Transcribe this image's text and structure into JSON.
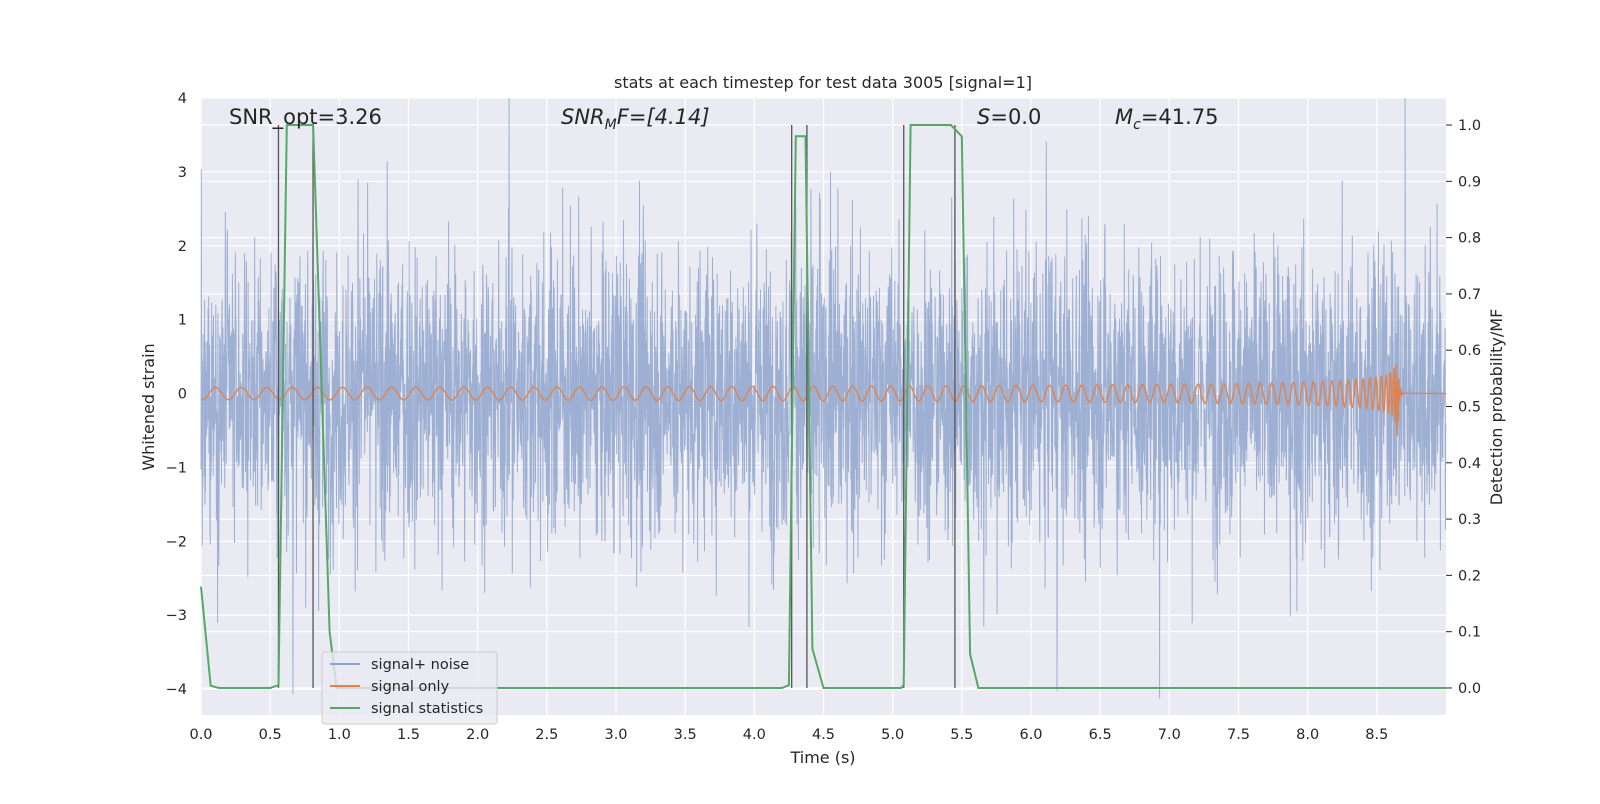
{
  "chart_data": {
    "type": "line",
    "title": "stats at each timestep for test data 3005 [signal=1]",
    "xlabel": "Time (s)",
    "ylabel": "Whitened strain",
    "ylabel_right": "Detection probability/MF",
    "xlim": [
      0,
      9.0
    ],
    "ylim": [
      -4.35,
      4.0
    ],
    "ylim_right": [
      -0.048,
      1.048
    ],
    "x_ticks": [
      "0.0",
      "0.5",
      "1.0",
      "1.5",
      "2.0",
      "2.5",
      "3.0",
      "3.5",
      "4.0",
      "4.5",
      "5.0",
      "5.5",
      "6.0",
      "6.5",
      "7.0",
      "7.5",
      "8.0",
      "8.5"
    ],
    "x_tick_values": [
      0,
      0.5,
      1.0,
      1.5,
      2.0,
      2.5,
      3.0,
      3.5,
      4.0,
      4.5,
      5.0,
      5.5,
      6.0,
      6.5,
      7.0,
      7.5,
      8.0,
      8.5
    ],
    "y_ticks": [
      "4",
      "3",
      "2",
      "1",
      "0",
      "−1",
      "−2",
      "−3",
      "−4"
    ],
    "y_tick_values": [
      4,
      3,
      2,
      1,
      0,
      -1,
      -2,
      -3,
      -4
    ],
    "y_ticks_right": [
      "1.0",
      "0.9",
      "0.8",
      "0.7",
      "0.6",
      "0.5",
      "0.4",
      "0.3",
      "0.2",
      "0.1",
      "0.0"
    ],
    "y_tick_values_right": [
      1.0,
      0.9,
      0.8,
      0.7,
      0.6,
      0.5,
      0.4,
      0.3,
      0.2,
      0.1,
      0.0
    ],
    "grid": true,
    "legend_position": "lower-left",
    "series": [
      {
        "name": "signal+ noise",
        "color": "#8fa4cc",
        "description_values": {
          "noise_sigma": 1.0,
          "x_start": 0.0,
          "x_end": 9.0
        }
      },
      {
        "name": "signal only",
        "color": "#dd8452",
        "chirp": {
          "t_merger": 8.65,
          "peak_amplitude": 0.72,
          "t_start_visible": 5.5
        }
      },
      {
        "name": "signal statistics",
        "color": "#55a868",
        "axis": "right",
        "x": [
          0.0,
          0.07,
          0.13,
          0.5,
          0.56,
          0.62,
          0.69,
          0.81,
          0.93,
          0.98,
          4.2,
          4.25,
          4.3,
          4.37,
          4.42,
          4.5,
          5.06,
          5.08,
          5.13,
          5.2,
          5.42,
          5.5,
          5.56,
          5.62,
          9.0
        ],
        "y": [
          0.18,
          0.004,
          0.0,
          0.0,
          0.005,
          1.0,
          1.0,
          1.0,
          0.1,
          0.0,
          0.0,
          0.005,
          0.98,
          0.98,
          0.07,
          0.0,
          0.0,
          0.005,
          1.0,
          1.0,
          1.0,
          0.98,
          0.06,
          0.0,
          0.0
        ]
      }
    ],
    "vertical_lines": [
      0.56,
      0.81,
      4.27,
      4.38,
      5.08,
      5.45
    ],
    "annotations": [
      {
        "text": "SNR_opt=3.26",
        "x": 0.2,
        "y": 3.6
      },
      {
        "text_main": "SNR",
        "text_sub": "M",
        "text_rest": "F=[4.14]",
        "x": 2.6,
        "y": 3.6
      },
      {
        "text_main": "S",
        "text_rest": "=0.0",
        "x": 5.6,
        "y": 3.6
      },
      {
        "text_main": "M",
        "text_sub": "c",
        "text_rest": "=41.75",
        "x": 6.6,
        "y": 3.6
      }
    ]
  },
  "legend": {
    "items": [
      "signal+ noise",
      "signal only",
      "signal statistics"
    ]
  },
  "colors": {
    "plot_background": "#eaeaf2",
    "grid": "#ffffff",
    "vline": "#555555"
  }
}
